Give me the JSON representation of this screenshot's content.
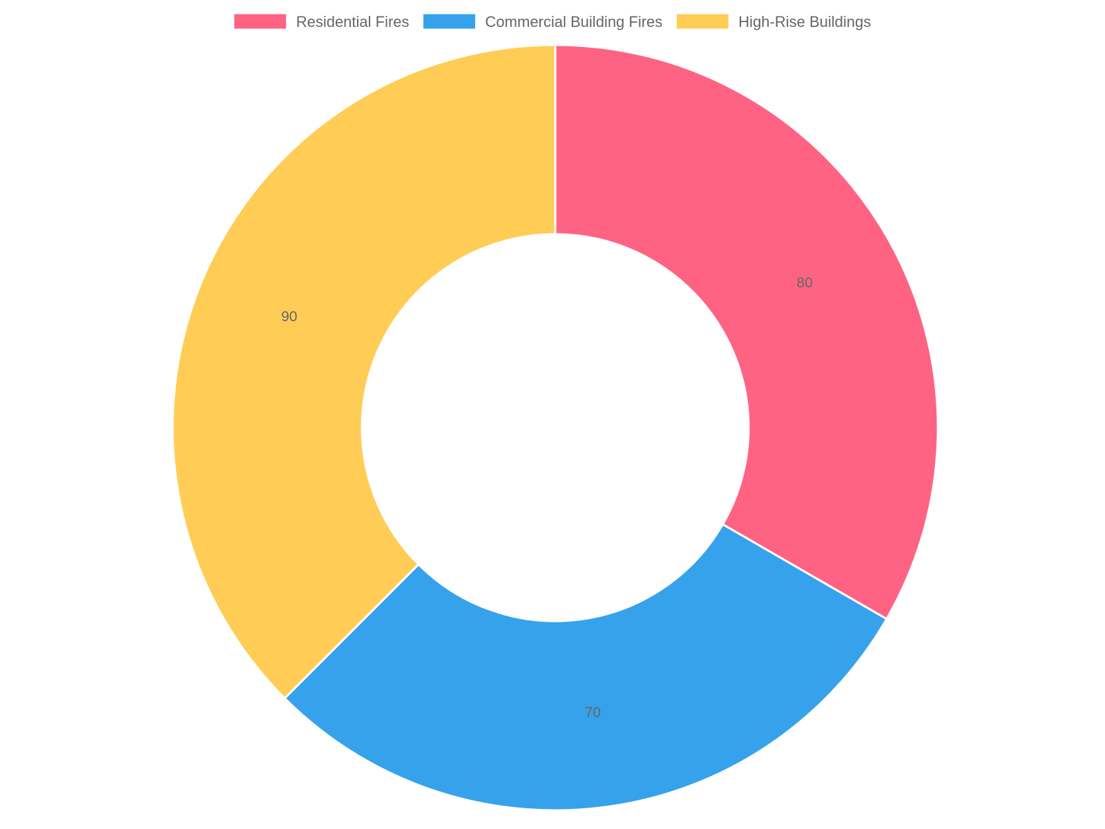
{
  "chart_data": {
    "type": "pie",
    "variant": "doughnut",
    "categories": [
      "Residential Fires",
      "Commercial Building Fires",
      "High-Rise Buildings"
    ],
    "values": [
      80,
      70,
      90
    ],
    "colors": [
      "#ff6384",
      "#36a2eb",
      "#ffcd56"
    ],
    "data_labels": [
      "80",
      "70",
      "90"
    ],
    "legend_position": "top",
    "start_angle": "top",
    "direction": "clockwise"
  }
}
